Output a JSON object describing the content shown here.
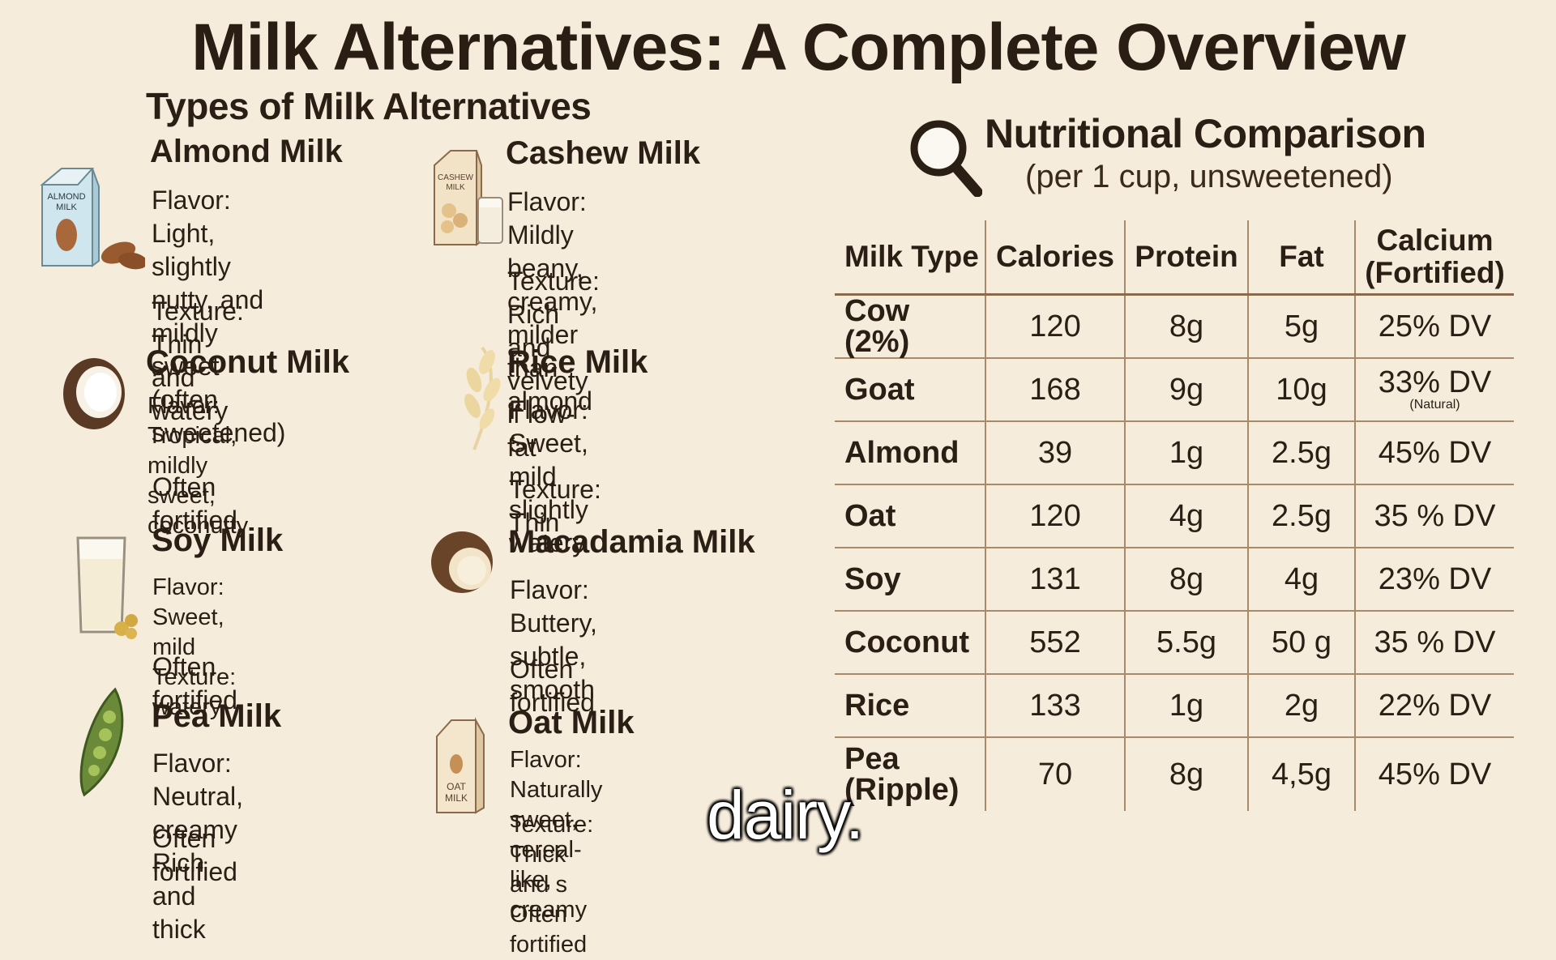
{
  "title": "Milk Alternatives: A Complete Overview",
  "types_section": {
    "title": "Types of Milk Alternatives",
    "items": [
      {
        "name": "Almond Milk",
        "lines": [
          "Flavor: Light, slightly\nnutty, and mildly sweet\n(often sweetened)",
          "Texture: Thin and watery"
        ],
        "icon": "almond-milk-carton-icon"
      },
      {
        "name": "Cashew Milk",
        "lines": [
          "Flavor: Mildly beany,\ncreamy, milder than almond",
          "Texture: Rich and\nvelvety if low-fat"
        ],
        "icon": "cashew-milk-carton-icon"
      },
      {
        "name": "Coconut Milk",
        "lines": [
          "Flavor: Tropical, mildly sweet,\ncoconutty",
          "Often fortified"
        ],
        "icon": "coconut-icon"
      },
      {
        "name": "Rice Milk",
        "lines": [
          "Flavor: Sweet, mild\nslightly watery",
          "Texture: Thin"
        ],
        "icon": "rice-grain-icon"
      },
      {
        "name": "Soy Milk",
        "lines": [
          "Flavor: Sweet, mild\nTexture: watery",
          "Often fortified"
        ],
        "icon": "soy-milk-glass-icon"
      },
      {
        "name": "Macadamia Milk",
        "lines": [
          "Flavor: Buttery, subtle,\nsmooth",
          "Often fortified"
        ],
        "icon": "macadamia-nut-icon"
      },
      {
        "name": "Pea Milk",
        "lines": [
          "Flavor: Neutral, creamy\nRich and thick",
          "Often fortified"
        ],
        "icon": "pea-pod-icon"
      },
      {
        "name": "Oat Milk",
        "lines": [
          "Flavor: Naturally sweet,\ncereal-like, creamy",
          "Texture: Thick and s\nOften fortified"
        ],
        "icon": "oat-milk-carton-icon",
        "carton_label": "OAT\nMILK"
      }
    ],
    "almond_carton_label": "ALMOND\nMILK",
    "cashew_carton_label": "CASHEW\nMILK"
  },
  "nutrition": {
    "title": "Nutritional Comparison",
    "subtitle": "(per 1 cup, unsweetened)",
    "icon": "magnifying-glass-icon",
    "columns": [
      "Milk Type",
      "Calories",
      "Protein",
      "Fat",
      "Calcium\n(Fortified)"
    ],
    "rows": [
      {
        "type": "Cow (2%)",
        "calories": "120",
        "protein": "8g",
        "fat": "5g",
        "calcium": "25% DV",
        "note": ""
      },
      {
        "type": "Goat",
        "calories": "168",
        "protein": "9g",
        "fat": "10g",
        "calcium": "33% DV",
        "note": "(Natural)"
      },
      {
        "type": "Almond",
        "calories": "39",
        "protein": "1g",
        "fat": "2.5g",
        "calcium": "45% DV",
        "note": ""
      },
      {
        "type": "Oat",
        "calories": "120",
        "protein": "4g",
        "fat": "2.5g",
        "calcium": "35 % DV",
        "note": ""
      },
      {
        "type": "Soy",
        "calories": "131",
        "protein": "8g",
        "fat": "4g",
        "calcium": "23% DV",
        "note": ""
      },
      {
        "type": "Coconut",
        "calories": "552",
        "protein": "5.5g",
        "fat": "50 g",
        "calcium": "35 % DV",
        "note": ""
      },
      {
        "type": "Rice",
        "calories": "133",
        "protein": "1g",
        "fat": "2g",
        "calcium": "22% DV",
        "note": ""
      },
      {
        "type": "Pea\n(Ripple)",
        "calories": "70",
        "protein": "8g",
        "fat": "4,5g",
        "calcium": "45% DV",
        "note": ""
      }
    ]
  },
  "caption": "dairy.",
  "colors": {
    "background": "#f6ecdc",
    "text": "#2b1f15",
    "rule": "#a88a6a"
  }
}
